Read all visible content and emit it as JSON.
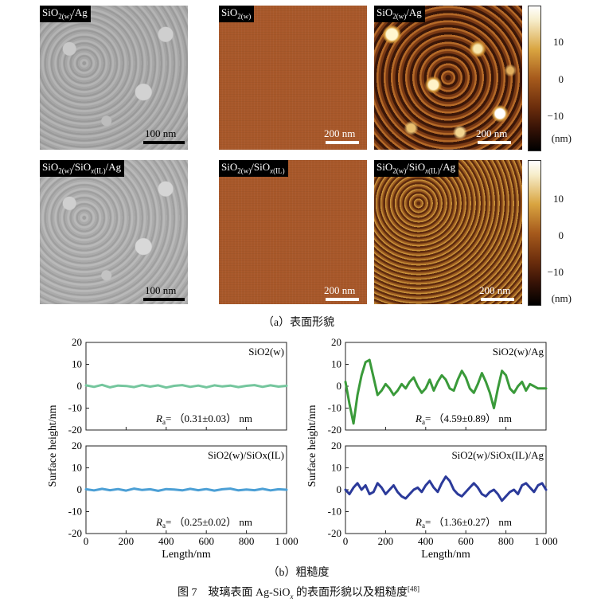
{
  "panel_a": {
    "row1": {
      "sem_label": "SiO2(w)/Ag",
      "sem_scale": "100 nm",
      "afm1_label": "SiO2(w)",
      "afm1_scale": "200 nm",
      "afm2_label": "SiO2(w)/Ag",
      "afm2_scale": "200 nm"
    },
    "row2": {
      "sem_label": "SiO2(w)/SiOx(IL)/Ag",
      "sem_scale": "100 nm",
      "afm1_label": "SiO2(w)/SiOx(IL)",
      "afm1_scale": "200 nm",
      "afm2_label": "SiO2(w)/SiOx(IL)/Ag",
      "afm2_scale": "200 nm"
    },
    "colorbar_ticks": [
      "10",
      "0",
      "−10"
    ],
    "colorbar_unit": "(nm)",
    "caption": "（a）表面形貌"
  },
  "panel_b": {
    "caption": "（b）粗糙度",
    "ylabel": "Surface height/nm",
    "xlabel": "Length/nm"
  },
  "figure_caption": "图 7　玻璃表面 Ag-SiO",
  "figure_caption_sub": "x",
  "figure_caption_tail": " 的表面形貌以及粗糙度",
  "figure_caption_ref": "[48]",
  "chart_data": [
    {
      "type": "line",
      "name": "SiO2(w)",
      "title": "SiO2(w)",
      "ra_text": "（0.31±0.03）  nm",
      "ra_label": "R",
      "ra_sub": "a",
      "color": "#74c69d",
      "xlim": [
        0,
        1000
      ],
      "ylim": [
        -20,
        20
      ],
      "xticks": [
        0,
        200,
        400,
        600,
        800,
        1000
      ],
      "xtick_labels": [
        "0",
        "200",
        "400",
        "600",
        "800",
        "1 000"
      ],
      "yticks": [
        -20,
        -10,
        0,
        10,
        20
      ],
      "x": [
        0,
        40,
        80,
        120,
        160,
        200,
        240,
        280,
        320,
        360,
        400,
        440,
        480,
        520,
        560,
        600,
        640,
        680,
        720,
        760,
        800,
        840,
        880,
        920,
        960,
        1000
      ],
      "y": [
        0.4,
        -0.3,
        0.6,
        -0.5,
        0.3,
        0.1,
        -0.4,
        0.5,
        -0.2,
        0.4,
        -0.6,
        0.2,
        0.5,
        -0.3,
        0.3,
        -0.5,
        0.4,
        -0.1,
        0.3,
        -0.4,
        0.2,
        0.5,
        -0.3,
        0.4,
        -0.2,
        0.2
      ]
    },
    {
      "type": "line",
      "name": "SiO2(w)/Ag",
      "title": "SiO2(w)/Ag",
      "ra_text": "（4.59±0.89）  nm",
      "ra_label": "R",
      "ra_sub": "a",
      "color": "#3a9a3a",
      "xlim": [
        0,
        1000
      ],
      "ylim": [
        -20,
        20
      ],
      "xticks": [
        0,
        200,
        400,
        600,
        800,
        1000
      ],
      "xtick_labels": [
        "0",
        "200",
        "400",
        "600",
        "800",
        "1 000"
      ],
      "yticks": [
        -20,
        -10,
        0,
        10,
        20
      ],
      "x": [
        0,
        20,
        40,
        60,
        80,
        100,
        120,
        140,
        160,
        180,
        200,
        220,
        240,
        260,
        280,
        300,
        320,
        340,
        360,
        380,
        400,
        420,
        440,
        460,
        480,
        500,
        520,
        540,
        560,
        580,
        600,
        620,
        640,
        660,
        680,
        700,
        720,
        740,
        760,
        780,
        800,
        820,
        840,
        860,
        880,
        900,
        920,
        940,
        960,
        980,
        1000
      ],
      "y": [
        2,
        -8,
        -17,
        -4,
        5,
        11,
        12,
        4,
        -4,
        -2,
        1,
        -1,
        -4,
        -2,
        1,
        -1,
        2,
        4,
        0,
        -3,
        -1,
        3,
        -2,
        2,
        5,
        3,
        -1,
        -2,
        3,
        7,
        4,
        -1,
        -3,
        1,
        6,
        2,
        -3,
        -10,
        -1,
        7,
        5,
        -1,
        -3,
        0,
        2,
        -2,
        1,
        0,
        -1,
        -1,
        -1
      ]
    },
    {
      "type": "line",
      "name": "SiO2(w)/SiOx(IL)",
      "title": "SiO2(w)/SiOx(IL)",
      "ra_text": "（0.25±0.02）  nm",
      "ra_label": "R",
      "ra_sub": "a",
      "color": "#4b9fd5",
      "xlim": [
        0,
        1000
      ],
      "ylim": [
        -20,
        20
      ],
      "xticks": [
        0,
        200,
        400,
        600,
        800,
        1000
      ],
      "xtick_labels": [
        "0",
        "200",
        "400",
        "600",
        "800",
        "1 000"
      ],
      "yticks": [
        -20,
        -10,
        0,
        10,
        20
      ],
      "x": [
        0,
        40,
        80,
        120,
        160,
        200,
        240,
        280,
        320,
        360,
        400,
        440,
        480,
        520,
        560,
        600,
        640,
        680,
        720,
        760,
        800,
        840,
        880,
        920,
        960,
        1000
      ],
      "y": [
        0.2,
        -0.3,
        0.4,
        -0.2,
        0.3,
        -0.4,
        0.5,
        -0.1,
        0.2,
        -0.5,
        0.3,
        0.1,
        -0.3,
        0.4,
        -0.2,
        0.3,
        -0.4,
        0.2,
        0.5,
        -0.3,
        0.1,
        -0.2,
        0.4,
        -0.3,
        0.2,
        0.0
      ]
    },
    {
      "type": "line",
      "name": "SiO2(w)/SiOx(IL)/Ag",
      "title": "SiO2(w)/SiOx(IL)/Ag",
      "ra_text": "（1.36±0.27）  nm",
      "ra_label": "R",
      "ra_sub": "a",
      "color": "#2b3a9a",
      "xlim": [
        0,
        1000
      ],
      "ylim": [
        -20,
        20
      ],
      "xticks": [
        0,
        200,
        400,
        600,
        800,
        1000
      ],
      "xtick_labels": [
        "0",
        "200",
        "400",
        "600",
        "800",
        "1 000"
      ],
      "yticks": [
        -20,
        -10,
        0,
        10,
        20
      ],
      "x": [
        0,
        20,
        40,
        60,
        80,
        100,
        120,
        140,
        160,
        180,
        200,
        220,
        240,
        260,
        280,
        300,
        320,
        340,
        360,
        380,
        400,
        420,
        440,
        460,
        480,
        500,
        520,
        540,
        560,
        580,
        600,
        620,
        640,
        660,
        680,
        700,
        720,
        740,
        760,
        780,
        800,
        820,
        840,
        860,
        880,
        900,
        920,
        940,
        960,
        980,
        1000
      ],
      "y": [
        0,
        -2,
        1,
        3,
        0,
        2,
        -2,
        -1,
        3,
        1,
        -2,
        0,
        2,
        -1,
        -3,
        -4,
        -2,
        0,
        1,
        -1,
        2,
        4,
        1,
        -1,
        3,
        6,
        4,
        0,
        -2,
        -3,
        -1,
        1,
        3,
        1,
        -2,
        -3,
        -1,
        0,
        -2,
        -5,
        -3,
        -1,
        0,
        -2,
        2,
        3,
        1,
        -1,
        2,
        3,
        0
      ]
    }
  ]
}
